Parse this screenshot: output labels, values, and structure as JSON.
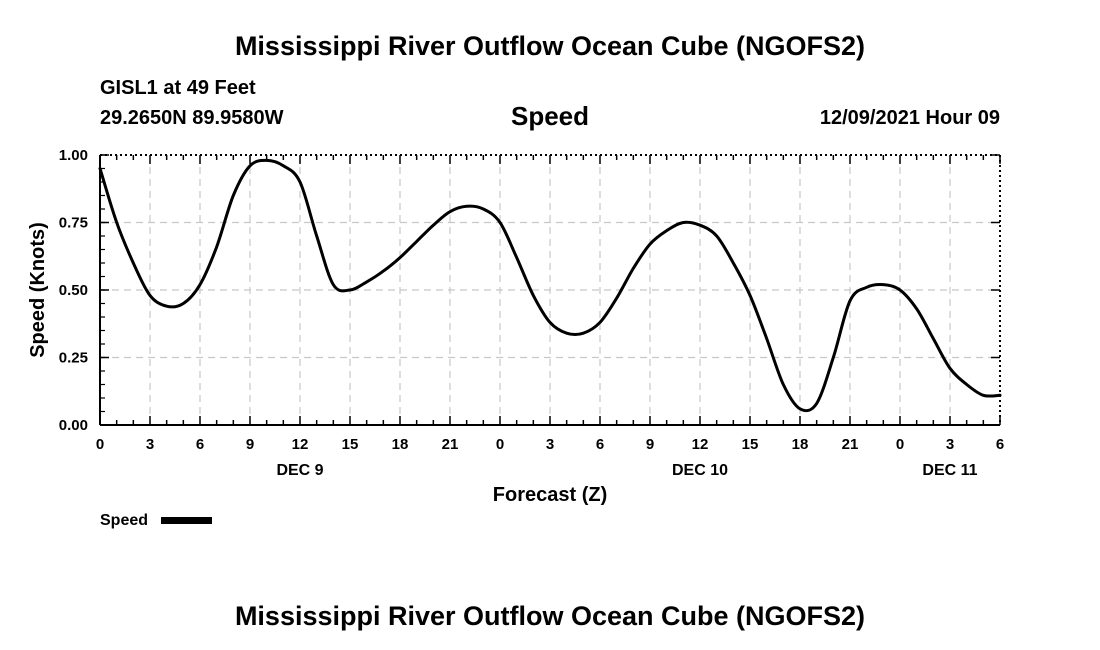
{
  "page": {
    "title_top": "Mississippi River Outflow Ocean Cube (NGOFS2)",
    "title_bottom": "Mississippi River Outflow Ocean Cube (NGOFS2)",
    "station": "GISL1 at 49 Feet",
    "coords": "29.2650N  89.9580W",
    "plot_title": "Speed",
    "timestamp": "12/09/2021 Hour 09",
    "legend_label": "Speed"
  },
  "chart_data": {
    "type": "line",
    "title": "Speed",
    "xlabel": "Forecast (Z)",
    "ylabel": "Speed (Knots)",
    "xlim": [
      0,
      54
    ],
    "ylim": [
      0,
      1
    ],
    "grid": true,
    "legend_position": "bottom-left",
    "line_color": "#000000",
    "x_ticks": [
      "0",
      "3",
      "6",
      "9",
      "12",
      "15",
      "18",
      "21",
      "0",
      "3",
      "6",
      "9",
      "12",
      "15",
      "18",
      "21",
      "0",
      "3",
      "6"
    ],
    "y_ticks": [
      "0.00",
      "0.25",
      "0.50",
      "0.75",
      "1.00"
    ],
    "date_labels": [
      {
        "label": "DEC 9",
        "hour": 12
      },
      {
        "label": "DEC 10",
        "hour": 36
      },
      {
        "label": "DEC 11",
        "hour": 51
      }
    ],
    "series": [
      {
        "name": "Speed",
        "x": [
          0,
          1,
          2,
          3,
          4,
          5,
          6,
          7,
          8,
          9,
          10,
          11,
          12,
          13,
          14,
          15,
          16,
          17,
          18,
          19,
          20,
          21,
          22,
          23,
          24,
          25,
          26,
          27,
          28,
          29,
          30,
          31,
          32,
          33,
          34,
          35,
          36,
          37,
          38,
          39,
          40,
          41,
          42,
          43,
          44,
          45,
          46,
          47,
          48,
          49,
          50,
          51,
          52,
          53,
          54
        ],
        "values": [
          0.95,
          0.75,
          0.6,
          0.48,
          0.44,
          0.45,
          0.52,
          0.66,
          0.85,
          0.96,
          0.98,
          0.96,
          0.9,
          0.7,
          0.52,
          0.5,
          0.53,
          0.57,
          0.62,
          0.68,
          0.74,
          0.79,
          0.81,
          0.8,
          0.75,
          0.62,
          0.48,
          0.38,
          0.34,
          0.34,
          0.38,
          0.47,
          0.58,
          0.67,
          0.72,
          0.75,
          0.74,
          0.7,
          0.6,
          0.48,
          0.32,
          0.15,
          0.06,
          0.08,
          0.25,
          0.46,
          0.51,
          0.52,
          0.5,
          0.43,
          0.32,
          0.21,
          0.15,
          0.11,
          0.11
        ]
      }
    ]
  }
}
